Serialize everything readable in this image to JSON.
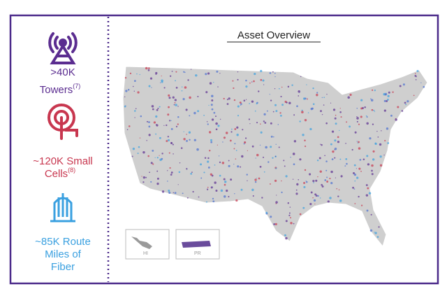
{
  "title": "Asset Overview",
  "stats": [
    {
      "lines": [
        ">40K",
        "Towers"
      ],
      "note": "(7)"
    },
    {
      "lines": [
        "~120K Small",
        "Cells"
      ],
      "note": "(8)"
    },
    {
      "lines": [
        "~85K Route",
        "Miles of",
        "Fiber"
      ]
    }
  ],
  "insets": [
    "HI",
    "PR"
  ]
}
